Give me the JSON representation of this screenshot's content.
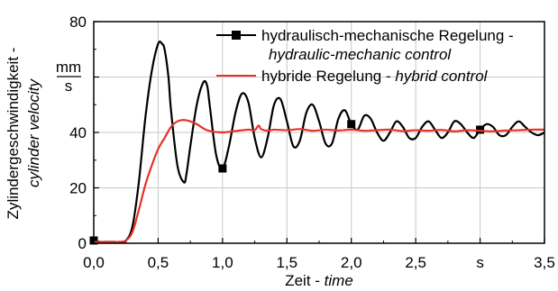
{
  "chart_data": {
    "type": "line",
    "xlim": [
      0,
      3.5
    ],
    "ylim": [
      0,
      80
    ],
    "x_ticks": [
      {
        "value": 0.0,
        "label": "0,0"
      },
      {
        "value": 0.5,
        "label": "0,5"
      },
      {
        "value": 1.0,
        "label": "1,0"
      },
      {
        "value": 1.5,
        "label": "1,5"
      },
      {
        "value": 2.0,
        "label": "2,0"
      },
      {
        "value": 2.5,
        "label": "2,5"
      },
      {
        "value": 3.0,
        "label": "s"
      },
      {
        "value": 3.5,
        "label": "3,5"
      }
    ],
    "y_ticks": [
      {
        "value": 0,
        "label": "0"
      },
      {
        "value": 20,
        "label": "20"
      },
      {
        "value": 40,
        "label": "40"
      },
      {
        "value": 60,
        "label": ""
      },
      {
        "value": 80,
        "label": "80"
      }
    ],
    "y_unit": {
      "numerator": "mm",
      "denominator": "s"
    },
    "xlabel": {
      "main": "Zeit - ",
      "italic": "time"
    },
    "ylabel": {
      "line1": "Zylindergeschwindigkeit -",
      "line2": "cylinder velocity"
    },
    "grid": true,
    "legend_position": "top-right",
    "series": [
      {
        "name": "hydraulisch-mechanische Regelung -",
        "name_italic": "hydraulic-mechanic control",
        "color": "#000000",
        "marker": "square",
        "markers_at": [
          0.0,
          1.0,
          2.0,
          3.0
        ],
        "x": [
          0.0,
          0.05,
          0.1,
          0.15,
          0.2,
          0.25,
          0.3,
          0.35,
          0.4,
          0.45,
          0.5,
          0.53,
          0.55,
          0.58,
          0.6,
          0.65,
          0.7,
          0.72,
          0.75,
          0.8,
          0.85,
          0.88,
          0.9,
          0.95,
          1.0,
          1.05,
          1.1,
          1.15,
          1.2,
          1.25,
          1.3,
          1.35,
          1.4,
          1.45,
          1.5,
          1.55,
          1.6,
          1.65,
          1.7,
          1.75,
          1.8,
          1.85,
          1.9,
          1.95,
          2.0,
          2.05,
          2.1,
          2.15,
          2.2,
          2.25,
          2.3,
          2.35,
          2.4,
          2.45,
          2.5,
          2.55,
          2.6,
          2.65,
          2.7,
          2.75,
          2.8,
          2.85,
          2.9,
          2.95,
          3.0,
          3.05,
          3.1,
          3.15,
          3.2,
          3.25,
          3.3,
          3.35,
          3.4,
          3.45,
          3.5
        ],
        "y": [
          1,
          0.5,
          0.5,
          0.5,
          0.5,
          1,
          6,
          22,
          45,
          62,
          72,
          72,
          70,
          60,
          48,
          28,
          22,
          25,
          35,
          50,
          58,
          57,
          50,
          32,
          27,
          35,
          47,
          54,
          51,
          38,
          31,
          38,
          50,
          52,
          44,
          35,
          37,
          47,
          50,
          44,
          36,
          36,
          45,
          48,
          43,
          41,
          46,
          45,
          40,
          37,
          40,
          44,
          42,
          38,
          38,
          42,
          44,
          41,
          38,
          40,
          44,
          43,
          40,
          38,
          41,
          43,
          42,
          39,
          39,
          42,
          44,
          42,
          40,
          39,
          40
        ]
      },
      {
        "name": "hybride Regelung -",
        "name_italic": "hybrid control",
        "color": "#e8312a",
        "marker": "none",
        "x": [
          0.0,
          0.1,
          0.2,
          0.25,
          0.3,
          0.35,
          0.4,
          0.45,
          0.5,
          0.55,
          0.6,
          0.65,
          0.7,
          0.75,
          0.8,
          0.85,
          0.9,
          1.0,
          1.1,
          1.2,
          1.25,
          1.28,
          1.3,
          1.35,
          1.4,
          1.5,
          1.6,
          1.7,
          1.8,
          1.9,
          2.0,
          2.1,
          2.2,
          2.3,
          2.4,
          2.5,
          2.6,
          2.7,
          2.8,
          2.9,
          3.0,
          3.1,
          3.2,
          3.3,
          3.4,
          3.5
        ],
        "y": [
          0.5,
          0.5,
          0.5,
          1,
          4,
          12,
          21,
          28,
          34,
          38,
          42,
          44,
          44.5,
          44,
          43,
          41.5,
          40.5,
          40,
          40.5,
          41,
          40.8,
          42.5,
          41.2,
          40.6,
          41,
          40.8,
          41.2,
          40.6,
          41,
          40.7,
          41,
          40.6,
          40.8,
          41,
          40.5,
          40.8,
          40.6,
          40.9,
          40.4,
          40.8,
          40.6,
          40.4,
          40.7,
          40.8,
          41,
          41
        ]
      }
    ]
  }
}
